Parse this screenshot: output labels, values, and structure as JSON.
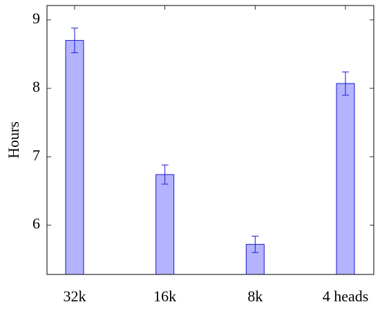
{
  "chart_data": {
    "type": "bar",
    "ylabel": "Hours",
    "categories": [
      "32k",
      "16k",
      "8k",
      "4 heads"
    ],
    "values": [
      8.7,
      6.74,
      5.72,
      8.07
    ],
    "errors": [
      0.18,
      0.14,
      0.12,
      0.17
    ],
    "color": "#b3b3ff",
    "edgecolor": "#1a1acc",
    "ylim": [
      5.28,
      9.21
    ],
    "yticks": [
      6,
      7,
      8,
      9
    ],
    "grid": false
  }
}
